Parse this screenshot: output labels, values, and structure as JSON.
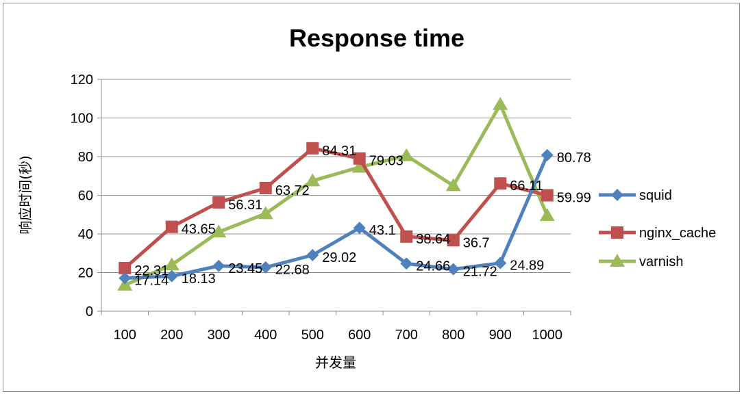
{
  "chart_data": {
    "type": "line",
    "title": "Response time",
    "xlabel": "并发量",
    "ylabel": "响应时间(秒)",
    "categories": [
      "100",
      "200",
      "300",
      "400",
      "500",
      "600",
      "700",
      "800",
      "900",
      "1000"
    ],
    "ylim": [
      0,
      120
    ],
    "yticks": [
      0,
      20,
      40,
      60,
      80,
      100,
      120
    ],
    "grid": true,
    "legend_position": "right",
    "series": [
      {
        "name": "squid",
        "color": "#4f81bd",
        "marker": "diamond",
        "values": [
          17.14,
          18.13,
          23.45,
          22.68,
          29.02,
          43.1,
          24.66,
          21.72,
          24.89,
          80.78
        ],
        "labels": [
          "17.14",
          "18.13",
          "23.45",
          "22.68",
          "29.02",
          "43.1",
          "24.66",
          "21.72",
          "24.89",
          "80.78"
        ]
      },
      {
        "name": "nginx_cache",
        "color": "#c0504d",
        "marker": "square",
        "values": [
          22.31,
          43.65,
          56.31,
          63.72,
          84.31,
          79.03,
          38.64,
          36.7,
          66.11,
          59.99
        ],
        "labels": [
          "22.31",
          "43.65",
          "56.31",
          "63.72",
          "84.31",
          "79.03",
          "38.64",
          "36.7",
          "66.11",
          "59.99"
        ]
      },
      {
        "name": "varnish",
        "color": "#9bbb59",
        "marker": "triangle",
        "values": [
          13.5,
          24,
          41,
          50.5,
          67.5,
          74.5,
          80.5,
          65,
          107,
          49.5
        ],
        "labels": []
      }
    ]
  }
}
